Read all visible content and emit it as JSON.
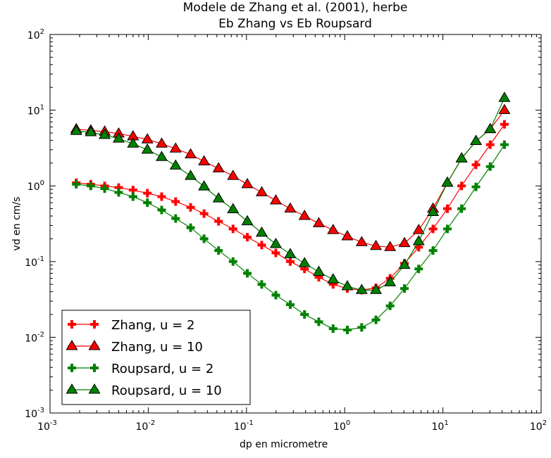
{
  "chart_data": {
    "type": "line",
    "title_line1": "Modele de Zhang et al. (2001), herbe",
    "title_line2": "Eb Zhang vs Eb Roupsard",
    "xlabel": "dp en micrometre",
    "ylabel": "vd en cm/s",
    "x_scale": "log",
    "y_scale": "log",
    "xlim": [
      0.001,
      100
    ],
    "ylim": [
      0.001,
      100
    ],
    "x_ticks": [
      {
        "base": "10",
        "exp": "-3"
      },
      {
        "base": "10",
        "exp": "-2"
      },
      {
        "base": "10",
        "exp": "-1"
      },
      {
        "base": "10",
        "exp": "0"
      },
      {
        "base": "10",
        "exp": "1"
      },
      {
        "base": "10",
        "exp": "2"
      }
    ],
    "y_ticks": [
      {
        "base": "10",
        "exp": "-3"
      },
      {
        "base": "10",
        "exp": "-2"
      },
      {
        "base": "10",
        "exp": "-1"
      },
      {
        "base": "10",
        "exp": "0"
      },
      {
        "base": "10",
        "exp": "1"
      },
      {
        "base": "10",
        "exp": "2"
      }
    ],
    "grid": false,
    "legend_position": "lower-left",
    "x": [
      0.00185,
      0.0026,
      0.0036,
      0.005,
      0.007,
      0.0098,
      0.0137,
      0.019,
      0.027,
      0.037,
      0.052,
      0.073,
      0.102,
      0.143,
      0.199,
      0.279,
      0.39,
      0.545,
      0.762,
      1.064,
      1.49,
      2.08,
      2.9,
      4.06,
      5.67,
      7.93,
      11.1,
      15.5,
      21.7,
      30.3,
      42.3
    ],
    "x_right": [
      0.00185,
      0.0026,
      0.0036,
      0.005,
      0.007,
      0.0098,
      0.0137,
      0.019,
      0.027,
      0.037,
      0.052,
      0.073,
      0.102,
      0.143,
      0.199,
      0.279,
      0.39,
      0.545,
      0.762,
      1.064,
      1.49,
      2.08,
      2.9,
      4.06,
      5.67,
      7.93,
      11.1,
      15.5,
      21.7,
      30.3,
      42.3
    ],
    "series": [
      {
        "name": "Zhang, u = 2",
        "color": "#ff0000",
        "marker": "plus",
        "values": [
          1.1,
          1.05,
          1.0,
          0.95,
          0.88,
          0.8,
          0.72,
          0.62,
          0.52,
          0.43,
          0.34,
          0.27,
          0.21,
          0.165,
          0.13,
          0.1,
          0.08,
          0.062,
          0.05,
          0.044,
          0.042,
          0.045,
          0.06,
          0.095,
          0.155,
          0.27,
          0.5,
          1.0,
          1.9,
          3.5,
          6.5
        ]
      },
      {
        "name": "Zhang, u = 10",
        "color": "#ff0000",
        "marker": "triangle",
        "values": [
          5.6,
          5.4,
          5.2,
          4.9,
          4.5,
          4.1,
          3.6,
          3.1,
          2.6,
          2.1,
          1.7,
          1.35,
          1.05,
          0.82,
          0.64,
          0.5,
          0.4,
          0.32,
          0.26,
          0.215,
          0.18,
          0.16,
          0.155,
          0.175,
          0.26,
          0.5,
          1.1,
          2.3,
          3.9,
          5.6,
          10.0
        ]
      },
      {
        "name": "Roupsard, u = 2",
        "color": "#008000",
        "marker": "plus",
        "values": [
          1.05,
          1.0,
          0.92,
          0.82,
          0.72,
          0.6,
          0.48,
          0.37,
          0.28,
          0.2,
          0.14,
          0.1,
          0.07,
          0.05,
          0.036,
          0.027,
          0.02,
          0.016,
          0.013,
          0.0125,
          0.0135,
          0.017,
          0.026,
          0.044,
          0.08,
          0.14,
          0.27,
          0.5,
          0.97,
          1.8,
          3.5
        ]
      },
      {
        "name": "Roupsard, u = 10",
        "color": "#008000",
        "marker": "triangle",
        "values": [
          5.3,
          5.1,
          4.7,
          4.2,
          3.6,
          3.0,
          2.4,
          1.85,
          1.35,
          0.98,
          0.68,
          0.49,
          0.34,
          0.24,
          0.17,
          0.125,
          0.095,
          0.073,
          0.058,
          0.047,
          0.042,
          0.042,
          0.053,
          0.09,
          0.185,
          0.45,
          1.1,
          2.3,
          3.9,
          5.6,
          14.5
        ]
      }
    ]
  }
}
